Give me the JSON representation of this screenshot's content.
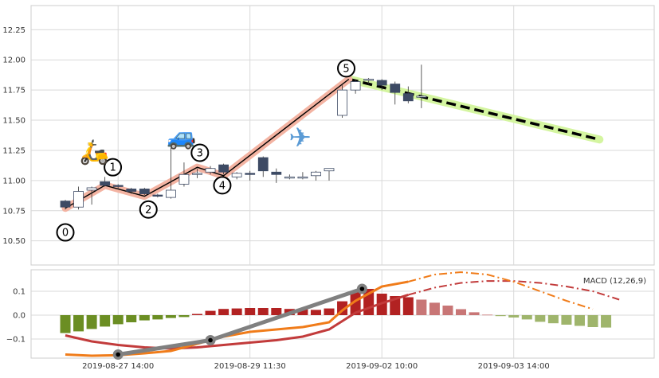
{
  "chart_data": [
    {
      "type": "candlestick",
      "panel": "price",
      "ylim": [
        10.3,
        12.45
      ],
      "yticks": [
        "10.50",
        "10.75",
        "11.00",
        "11.25",
        "11.50",
        "11.75",
        "12.00",
        "12.25"
      ],
      "ytick_values": [
        10.5,
        10.75,
        11.0,
        11.25,
        11.5,
        11.75,
        12.0,
        12.25
      ],
      "grid": true,
      "candles": [
        {
          "i": 0,
          "open": 10.78,
          "high": 10.84,
          "low": 10.76,
          "close": 10.83,
          "color": "#3d4a64"
        },
        {
          "i": 1,
          "open": 10.78,
          "high": 10.95,
          "low": 10.76,
          "close": 10.91,
          "color": "#ffffff"
        },
        {
          "i": 2,
          "open": 10.92,
          "high": 10.95,
          "low": 10.8,
          "close": 10.94,
          "color": "#ffffff"
        },
        {
          "i": 3,
          "open": 10.99,
          "high": 11.03,
          "low": 10.95,
          "close": 10.96,
          "color": "#3d4a64"
        },
        {
          "i": 4,
          "open": 10.96,
          "high": 10.97,
          "low": 10.93,
          "close": 10.95,
          "color": "#3d4a64"
        },
        {
          "i": 5,
          "open": 10.93,
          "high": 10.94,
          "low": 10.89,
          "close": 10.91,
          "color": "#3d4a64"
        },
        {
          "i": 6,
          "open": 10.93,
          "high": 10.94,
          "low": 10.88,
          "close": 10.89,
          "color": "#3d4a64"
        },
        {
          "i": 7,
          "open": 10.88,
          "high": 10.89,
          "low": 10.86,
          "close": 10.87,
          "color": "#3d4a64"
        },
        {
          "i": 8,
          "open": 10.86,
          "high": 11.27,
          "low": 10.85,
          "close": 10.92,
          "color": "#ffffff"
        },
        {
          "i": 9,
          "open": 10.97,
          "high": 11.15,
          "low": 10.95,
          "close": 11.05,
          "color": "#ffffff"
        },
        {
          "i": 10,
          "open": 11.05,
          "high": 11.1,
          "low": 11.02,
          "close": 11.06,
          "color": "#ffffff"
        },
        {
          "i": 11,
          "open": 11.07,
          "high": 11.12,
          "low": 11.05,
          "close": 11.1,
          "color": "#ffffff"
        },
        {
          "i": 12,
          "open": 11.13,
          "high": 11.14,
          "low": 11.05,
          "close": 11.07,
          "color": "#3d4a64"
        },
        {
          "i": 13,
          "open": 11.03,
          "high": 11.07,
          "low": 11.01,
          "close": 11.06,
          "color": "#ffffff"
        },
        {
          "i": 14,
          "open": 11.06,
          "high": 11.08,
          "low": 11.0,
          "close": 11.05,
          "color": "#3d4a64"
        },
        {
          "i": 15,
          "open": 11.19,
          "high": 11.2,
          "low": 11.03,
          "close": 11.08,
          "color": "#3d4a64"
        },
        {
          "i": 16,
          "open": 11.07,
          "high": 11.1,
          "low": 10.98,
          "close": 11.05,
          "color": "#3d4a64"
        },
        {
          "i": 17,
          "open": 11.02,
          "high": 11.05,
          "low": 11.01,
          "close": 11.03,
          "color": "#ffffff"
        },
        {
          "i": 18,
          "open": 11.03,
          "high": 11.07,
          "low": 11.01,
          "close": 11.02,
          "color": "#ffffff"
        },
        {
          "i": 19,
          "open": 11.04,
          "high": 11.08,
          "low": 11.0,
          "close": 11.07,
          "color": "#ffffff"
        },
        {
          "i": 20,
          "open": 11.08,
          "high": 11.1,
          "low": 11.0,
          "close": 11.1,
          "color": "#ffffff"
        },
        {
          "i": 21,
          "open": 11.54,
          "high": 11.79,
          "low": 11.52,
          "close": 11.75,
          "color": "#ffffff"
        },
        {
          "i": 22,
          "open": 11.75,
          "high": 11.84,
          "low": 11.72,
          "close": 11.82,
          "color": "#ffffff"
        },
        {
          "i": 23,
          "open": 11.83,
          "high": 11.85,
          "low": 11.8,
          "close": 11.84,
          "color": "#ffffff"
        },
        {
          "i": 24,
          "open": 11.83,
          "high": 11.84,
          "low": 11.75,
          "close": 11.79,
          "color": "#3d4a64"
        },
        {
          "i": 25,
          "open": 11.8,
          "high": 11.82,
          "low": 11.63,
          "close": 11.73,
          "color": "#3d4a64"
        },
        {
          "i": 26,
          "open": 11.72,
          "high": 11.78,
          "low": 11.64,
          "close": 11.66,
          "color": "#3d4a64"
        },
        {
          "i": 27,
          "open": 11.69,
          "high": 11.96,
          "low": 11.6,
          "close": 11.7,
          "color": "#ffffff"
        }
      ],
      "wave_path": [
        {
          "label": "0",
          "i": 0,
          "y": 10.77
        },
        {
          "label": "1",
          "i": 3,
          "y": 10.96
        },
        {
          "label": "2",
          "i": 6,
          "y": 10.87
        },
        {
          "label": "3",
          "i": 10,
          "y": 11.11
        },
        {
          "label": "4",
          "i": 12,
          "y": 11.04
        },
        {
          "label": "5",
          "i": 21.5,
          "y": 11.84
        }
      ],
      "wave_labels": [
        {
          "text": "0",
          "i": 0,
          "y": 10.57
        },
        {
          "text": "1",
          "i": 3.6,
          "y": 11.11
        },
        {
          "text": "2",
          "i": 6.3,
          "y": 10.76
        },
        {
          "text": "3",
          "i": 10.2,
          "y": 11.23
        },
        {
          "text": "4",
          "i": 11.9,
          "y": 10.96
        },
        {
          "text": "5",
          "i": 21.3,
          "y": 11.93
        }
      ],
      "projection": [
        {
          "i": 21.5,
          "y": 11.84
        },
        {
          "i": 40.5,
          "y": 11.34
        }
      ],
      "icons": [
        {
          "name": "scooter-icon",
          "glyph": "🛵",
          "i": 2.2,
          "y": 11.17
        },
        {
          "name": "car-icon",
          "glyph": "🚙",
          "i": 8.8,
          "y": 11.3
        },
        {
          "name": "airplane-icon",
          "glyph": "✈",
          "i": 17.8,
          "y": 11.28
        }
      ]
    },
    {
      "type": "bar+line",
      "panel": "macd",
      "legend": "MACD (12,26,9)",
      "legend_position": "top-right",
      "ylim": [
        -0.18,
        0.19
      ],
      "yticks": [
        "−0.1",
        "0.0",
        "0.1"
      ],
      "ytick_values": [
        -0.1,
        0.0,
        0.1
      ],
      "grid": true,
      "x_ticks": [
        {
          "i": 4,
          "label": "2019-08-27 14:00"
        },
        {
          "i": 14,
          "label": "2019-08-29 11:30"
        },
        {
          "i": 24,
          "label": "2019-09-02 10:00"
        },
        {
          "i": 34,
          "label": "2019-09-03 14:00"
        }
      ],
      "histogram": [
        -0.075,
        -0.068,
        -0.058,
        -0.048,
        -0.038,
        -0.03,
        -0.022,
        -0.018,
        -0.012,
        -0.008,
        0.005,
        0.018,
        0.026,
        0.028,
        0.03,
        0.03,
        0.03,
        0.026,
        0.024,
        0.022,
        0.028,
        0.058,
        0.098,
        0.11,
        0.09,
        0.08,
        0.075,
        0.065,
        0.052,
        0.04,
        0.025,
        0.012,
        0.002,
        -0.004,
        -0.01,
        -0.018,
        -0.028,
        -0.034,
        -0.04,
        -0.045,
        -0.05,
        -0.052
      ],
      "histogram_colors": {
        "neg_future": "#9fb56c",
        "neg": "#6b8e23",
        "pos": "#b22222",
        "pos_future": "#c87676"
      },
      "histogram_split": 27,
      "macd_line": [
        [
          0,
          -0.165
        ],
        [
          2,
          -0.17
        ],
        [
          4,
          -0.168
        ],
        [
          6,
          -0.16
        ],
        [
          8,
          -0.15
        ],
        [
          10,
          -0.12
        ],
        [
          12,
          -0.09
        ],
        [
          14,
          -0.07
        ],
        [
          16,
          -0.06
        ],
        [
          18,
          -0.05
        ],
        [
          20,
          -0.03
        ],
        [
          21,
          0.02
        ],
        [
          22,
          0.06
        ],
        [
          23,
          0.09
        ],
        [
          24,
          0.12
        ],
        [
          26,
          0.14
        ]
      ],
      "macd_proj": [
        [
          26,
          0.14
        ],
        [
          28,
          0.17
        ],
        [
          30,
          0.18
        ],
        [
          32,
          0.17
        ],
        [
          34,
          0.14
        ],
        [
          36,
          0.1
        ],
        [
          38,
          0.06
        ],
        [
          40,
          0.025
        ]
      ],
      "signal_line": [
        [
          0,
          -0.085
        ],
        [
          2,
          -0.11
        ],
        [
          4,
          -0.125
        ],
        [
          6,
          -0.135
        ],
        [
          8,
          -0.14
        ],
        [
          10,
          -0.135
        ],
        [
          12,
          -0.125
        ],
        [
          14,
          -0.115
        ],
        [
          16,
          -0.105
        ],
        [
          18,
          -0.09
        ],
        [
          20,
          -0.06
        ],
        [
          22,
          0.01
        ],
        [
          24,
          0.05
        ],
        [
          26,
          0.085
        ]
      ],
      "signal_proj": [
        [
          26,
          0.085
        ],
        [
          28,
          0.115
        ],
        [
          30,
          0.135
        ],
        [
          32,
          0.143
        ],
        [
          34,
          0.143
        ],
        [
          36,
          0.135
        ],
        [
          38,
          0.12
        ],
        [
          40,
          0.1
        ],
        [
          42,
          0.065
        ]
      ],
      "trend_points": [
        {
          "i": 4,
          "y": -0.165
        },
        {
          "i": 11,
          "y": -0.105
        },
        {
          "i": 22.5,
          "y": 0.11
        }
      ],
      "colors": {
        "macd": "#f07c1a",
        "signal": "#c23b3b",
        "trend": "#808080"
      }
    }
  ]
}
